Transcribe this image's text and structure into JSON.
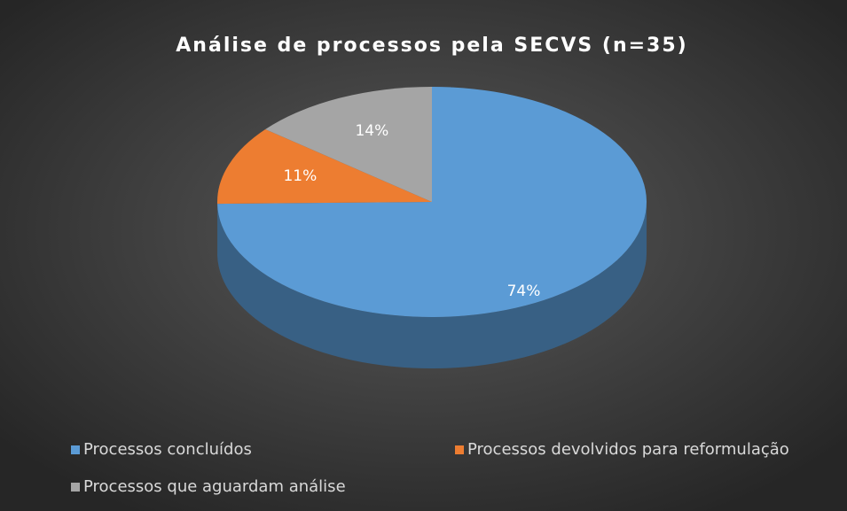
{
  "chart_data": {
    "type": "pie3d",
    "title": "Análise de processos pela SECVS (n=35)",
    "categories": [
      "Processos concluídos",
      "Processos devolvidos para reformulação",
      "Processos que aguardam análise"
    ],
    "values": [
      74,
      11,
      14
    ],
    "value_labels": [
      "74%",
      "11%",
      "14%"
    ],
    "colors": [
      "#5b9bd5",
      "#ed7d31",
      "#a5a5a5"
    ],
    "legend": "bottom"
  }
}
